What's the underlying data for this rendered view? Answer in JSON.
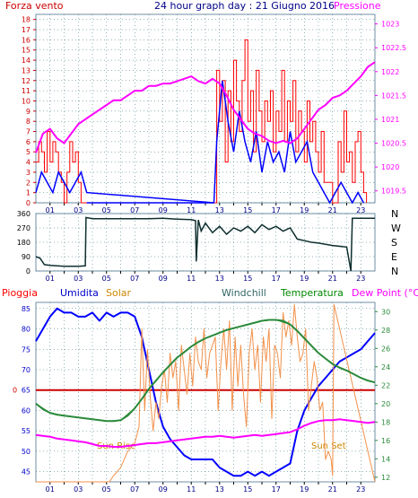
{
  "colors": {
    "frame": "#6f8fa6",
    "axis": "#000000",
    "grid": "#2b6a76",
    "wind_gust": "#ff0000",
    "wind_avg": "#0000ff",
    "pressure": "#ff00ff",
    "left_red_axis": "#cc0000",
    "direction": "#0f2f2f",
    "humidity": "#0000ff",
    "solar": "#f2914a",
    "windchill": "#2a8a3a",
    "temperature": "#2a8a3a",
    "dewpoint": "#ff00ff",
    "rain": "#cc0000",
    "axis_labels": {
      "pioggia": "#ff0000",
      "umidita": "#0000cc",
      "solar": "#cc8800",
      "windchill": "#336666",
      "temperatura": "#008800",
      "dewpoint": "#ff00ff"
    }
  },
  "header": {
    "left": "Forza vento",
    "center": "24 hour graph day : 21 Giugno 2016",
    "right": "Pressione"
  },
  "bottom_header": {
    "pioggia": "Pioggia",
    "umidita": "Umidita",
    "solar": "Solar",
    "windchill": "Windchill",
    "temperatura": "Temperatura",
    "dewpoint": "Dew Point (°C)"
  },
  "hour_ticks": [
    "01",
    "03",
    "05",
    "07",
    "09",
    "11",
    "13",
    "15",
    "17",
    "19",
    "21",
    "23"
  ],
  "annotations": {
    "sunrise": "Sun Rise",
    "sunset": "Sun Set"
  },
  "chart_data": [
    {
      "type": "line",
      "panel": "wind_pressure",
      "y_left_ticks": [
        "0",
        "1",
        "2",
        "3",
        "4",
        "5",
        "6",
        "7",
        "8",
        "9",
        "10",
        "11",
        "12",
        "13",
        "14",
        "15",
        "16",
        "17",
        "18"
      ],
      "y_right_ticks": [
        "1019.5",
        "1020",
        "1020.5",
        "1021",
        "1021.5",
        "1022",
        "1022.5",
        "1023"
      ],
      "ylim_left": [
        0,
        18.5
      ],
      "ylim_right": [
        1019.25,
        1023.2
      ],
      "xlim": [
        0,
        24
      ],
      "gust_x": [
        0.0,
        0.2,
        0.4,
        0.6,
        0.8,
        1.0,
        1.2,
        1.4,
        1.6,
        1.8,
        2.0,
        2.2,
        2.4,
        2.6,
        2.8,
        3.0,
        3.2,
        12.6,
        12.8,
        13.0,
        13.2,
        13.4,
        13.6,
        13.8,
        14.0,
        14.2,
        14.4,
        14.6,
        14.8,
        15.0,
        15.2,
        15.4,
        15.6,
        15.8,
        16.0,
        16.2,
        16.4,
        16.6,
        16.8,
        17.0,
        17.2,
        17.4,
        17.6,
        17.8,
        18.0,
        18.2,
        18.4,
        18.6,
        18.8,
        19.0,
        19.2,
        19.4,
        19.6,
        19.8,
        20.0,
        20.2,
        20.4,
        21.0,
        21.2,
        21.4,
        21.6,
        21.8,
        22.0,
        22.2,
        22.4,
        22.6,
        22.8,
        23.0,
        23.2,
        23.4
      ],
      "gust_values": [
        4,
        6,
        5,
        3,
        7,
        4,
        6,
        5,
        3,
        2,
        0,
        3,
        6,
        4,
        5,
        2,
        0,
        0,
        13,
        8,
        12,
        4,
        11,
        6,
        14,
        10,
        7,
        12,
        16,
        8,
        11,
        5,
        13,
        9,
        6,
        10,
        8,
        11,
        5,
        9,
        7,
        13,
        6,
        10,
        8,
        12,
        5,
        9,
        7,
        4,
        10,
        6,
        8,
        5,
        3,
        7,
        2,
        0,
        0,
        6,
        3,
        9,
        4,
        5,
        2,
        6,
        7,
        3,
        1,
        0
      ],
      "avg_x": [
        0.0,
        0.4,
        0.8,
        1.2,
        1.6,
        2.0,
        2.4,
        2.8,
        3.2,
        3.6,
        12.6,
        12.8,
        13.2,
        13.6,
        14.0,
        14.4,
        14.8,
        15.2,
        15.6,
        16.0,
        16.4,
        16.8,
        17.2,
        17.6,
        18.0,
        18.4,
        18.8,
        19.2,
        19.6,
        20.0,
        20.4,
        20.8,
        21.2,
        21.6,
        22.0,
        22.4,
        22.8,
        23.2
      ],
      "avg_values": [
        1,
        3,
        2,
        1,
        3,
        2,
        1,
        2,
        3,
        1,
        0,
        6,
        12,
        8,
        5,
        9,
        6,
        4,
        7,
        3,
        6,
        4,
        5,
        3,
        7,
        4,
        5,
        6,
        3,
        2,
        1,
        0,
        1,
        2,
        1,
        0,
        1,
        0
      ],
      "pressure_x": [
        0.0,
        0.5,
        1.0,
        1.5,
        2.0,
        2.5,
        3.0,
        3.5,
        4.0,
        4.5,
        5.0,
        5.5,
        6.0,
        6.5,
        7.0,
        7.5,
        8.0,
        8.5,
        9.0,
        9.5,
        10.0,
        10.5,
        11.0,
        11.5,
        12.0,
        12.5,
        13.0,
        13.5,
        14.0,
        14.5,
        15.0,
        15.5,
        16.0,
        16.5,
        17.0,
        17.5,
        18.0,
        18.5,
        19.0,
        19.5,
        20.0,
        20.5,
        21.0,
        21.5,
        22.0,
        22.5,
        23.0,
        23.5,
        24.0
      ],
      "pressure_values": [
        1020.3,
        1020.7,
        1020.8,
        1020.6,
        1020.5,
        1020.7,
        1020.9,
        1021.0,
        1021.1,
        1021.2,
        1021.3,
        1021.4,
        1021.4,
        1021.5,
        1021.6,
        1021.6,
        1021.7,
        1021.7,
        1021.75,
        1021.75,
        1021.8,
        1021.85,
        1021.9,
        1021.8,
        1021.75,
        1021.85,
        1021.75,
        1021.5,
        1021.2,
        1021.0,
        1020.8,
        1020.7,
        1020.65,
        1020.55,
        1020.5,
        1020.55,
        1020.5,
        1020.6,
        1020.8,
        1021.0,
        1021.2,
        1021.3,
        1021.45,
        1021.5,
        1021.6,
        1021.75,
        1021.9,
        1022.1,
        1022.2
      ]
    },
    {
      "type": "line",
      "panel": "wind_direction",
      "y_left_ticks": [
        "0",
        "90",
        "180",
        "270",
        "360"
      ],
      "y_right_ticks": [
        "N",
        "W",
        "S",
        "E",
        "N"
      ],
      "ylim": [
        0,
        360
      ],
      "xlim": [
        0,
        24
      ],
      "x": [
        0.0,
        0.3,
        0.6,
        1.0,
        2.0,
        3.0,
        3.5,
        3.55,
        4.0,
        5.0,
        6.0,
        7.0,
        8.0,
        9.0,
        10.0,
        11.0,
        11.3,
        11.35,
        11.5,
        11.7,
        12.0,
        12.5,
        13.0,
        13.5,
        14.0,
        14.5,
        15.0,
        15.5,
        16.0,
        16.5,
        17.0,
        17.5,
        18.0,
        18.5,
        19.0,
        19.5,
        20.0,
        21.0,
        22.0,
        22.3,
        22.4,
        22.7,
        24.0
      ],
      "values": [
        90,
        80,
        40,
        35,
        30,
        30,
        32,
        335,
        328,
        328,
        328,
        328,
        328,
        330,
        325,
        322,
        315,
        60,
        320,
        250,
        300,
        240,
        280,
        230,
        270,
        250,
        280,
        240,
        290,
        260,
        280,
        250,
        270,
        200,
        190,
        180,
        175,
        160,
        150,
        0,
        330,
        330,
        330
      ]
    },
    {
      "type": "line",
      "panel": "weather",
      "y_left_ticks": [
        "45",
        "50",
        "55",
        "60",
        "65",
        "70",
        "75",
        "80",
        "85"
      ],
      "y_right_ticks": [
        "12",
        "14",
        "16",
        "18",
        "20",
        "22",
        "24",
        "26",
        "28",
        "30"
      ],
      "ylim_left": [
        42.5,
        86.5
      ],
      "ylim_right": [
        11.5,
        31
      ],
      "xlim": [
        0,
        24
      ],
      "rain_value": 0,
      "series": [
        {
          "name": "Umidita",
          "axis": "left",
          "x": [
            0.0,
            0.5,
            1.0,
            1.5,
            2.0,
            2.5,
            3.0,
            3.5,
            4.0,
            4.5,
            5.0,
            5.5,
            6.0,
            6.5,
            7.0,
            7.5,
            8.0,
            8.5,
            9.0,
            9.5,
            10.0,
            10.5,
            11.0,
            11.5,
            12.0,
            12.5,
            13.0,
            13.5,
            14.0,
            14.5,
            15.0,
            15.5,
            16.0,
            16.5,
            17.0,
            17.5,
            18.0,
            18.5,
            19.0,
            19.5,
            20.0,
            20.5,
            21.0,
            21.5,
            22.0,
            22.5,
            23.0,
            23.5,
            24.0
          ],
          "values": [
            77,
            80,
            83,
            85,
            84,
            84,
            83,
            83,
            84,
            82,
            84,
            83,
            84,
            84,
            83,
            78,
            70,
            62,
            56,
            53,
            51,
            49,
            48,
            48,
            48,
            48,
            46,
            45,
            44,
            44,
            45,
            44,
            45,
            44,
            45,
            46,
            47,
            55,
            60,
            63,
            66,
            68,
            70,
            72,
            73,
            74,
            75,
            77,
            79
          ]
        },
        {
          "name": "Solar",
          "axis": "left",
          "x": [
            0.0,
            5.2,
            5.5,
            6.0,
            6.5,
            7.0,
            7.3,
            7.5,
            7.7,
            7.9,
            8.1,
            8.3,
            8.5,
            8.7,
            8.9,
            9.1,
            9.3,
            9.5,
            9.7,
            9.9,
            10.1,
            10.3,
            10.5,
            10.7,
            10.9,
            11.1,
            11.3,
            11.5,
            11.7,
            11.9,
            12.1,
            12.3,
            12.5,
            12.7,
            12.9,
            13.1,
            13.3,
            13.5,
            13.7,
            13.9,
            14.1,
            14.3,
            14.5,
            14.7,
            14.9,
            15.1,
            15.3,
            15.5,
            15.7,
            15.9,
            16.1,
            16.3,
            16.5,
            16.7,
            16.9,
            17.1,
            17.3,
            17.5,
            17.7,
            17.9,
            18.1,
            18.3,
            18.5,
            18.7,
            18.9,
            19.1,
            19.3,
            19.5,
            19.7,
            19.9,
            20.1,
            20.3,
            20.5,
            20.7,
            20.9,
            21.0,
            21.1,
            24.0
          ],
          "values": [
            42.5,
            42.5,
            44,
            46,
            50,
            52,
            56,
            80,
            60,
            75,
            63,
            55,
            62,
            58,
            66,
            70,
            62,
            74,
            68,
            72,
            60,
            76,
            70,
            64,
            74,
            66,
            78,
            72,
            70,
            80,
            68,
            74,
            76,
            78,
            60,
            72,
            80,
            70,
            82,
            60,
            78,
            66,
            76,
            64,
            56,
            74,
            80,
            70,
            76,
            62,
            78,
            72,
            80,
            58,
            76,
            74,
            68,
            84,
            78,
            82,
            76,
            86,
            78,
            72,
            74,
            80,
            60,
            66,
            72,
            68,
            60,
            62,
            48,
            50,
            48,
            44,
            86,
            42.5
          ]
        },
        {
          "name": "Windchill",
          "axis": "right",
          "x": [
            0.0,
            0.5,
            1.0,
            1.5,
            2.0,
            2.5,
            3.0,
            3.5,
            4.0,
            4.5,
            5.0,
            5.5,
            6.0,
            6.5,
            7.0,
            7.5,
            8.0,
            8.5,
            9.0,
            9.5,
            10.0,
            10.5,
            11.0,
            11.5,
            12.0,
            12.5,
            13.0,
            13.5,
            14.0,
            14.5,
            15.0,
            15.5,
            16.0,
            16.5,
            17.0,
            17.5,
            18.0,
            18.5,
            19.0,
            19.5,
            20.0,
            20.5,
            21.0,
            21.5,
            22.0,
            22.5,
            23.0,
            23.5,
            24.0
          ],
          "values": [
            20.0,
            19.4,
            19.0,
            18.8,
            18.7,
            18.6,
            18.5,
            18.4,
            18.3,
            18.2,
            18.1,
            18.1,
            18.2,
            18.7,
            19.5,
            20.5,
            21.6,
            22.5,
            23.4,
            24.2,
            25.0,
            25.6,
            26.2,
            26.7,
            27.1,
            27.4,
            27.7,
            28.0,
            28.2,
            28.4,
            28.6,
            28.8,
            29.0,
            29.1,
            29.1,
            29.0,
            28.6,
            27.9,
            27.1,
            26.3,
            25.5,
            24.9,
            24.3,
            23.9,
            23.6,
            23.2,
            22.8,
            22.5,
            22.3
          ]
        },
        {
          "name": "Temperatura",
          "axis": "right",
          "x": [
            0.0,
            1.0,
            2.0,
            3.0,
            4.0,
            5.0,
            6.0,
            7.0,
            8.0,
            9.0,
            10.0,
            11.0,
            12.0,
            13.0,
            14.0,
            15.0,
            16.0,
            17.0,
            18.0,
            19.0,
            20.0,
            21.0,
            22.0,
            23.0,
            24.0
          ],
          "values": [
            20.0,
            19.0,
            18.7,
            18.5,
            18.3,
            18.1,
            18.2,
            19.5,
            21.6,
            23.4,
            25.0,
            26.2,
            27.1,
            27.7,
            28.2,
            28.6,
            29.0,
            29.1,
            28.6,
            27.1,
            25.5,
            24.3,
            23.6,
            22.8,
            22.3
          ]
        },
        {
          "name": "Dew Point (°C)",
          "axis": "right",
          "x": [
            0.0,
            0.5,
            1.0,
            1.5,
            2.0,
            2.5,
            3.0,
            3.5,
            4.0,
            4.5,
            5.0,
            5.5,
            6.0,
            6.5,
            7.0,
            7.5,
            8.0,
            8.5,
            9.0,
            9.5,
            10.0,
            10.5,
            11.0,
            11.5,
            12.0,
            12.5,
            13.0,
            13.5,
            14.0,
            14.5,
            15.0,
            15.5,
            16.0,
            16.5,
            17.0,
            17.5,
            18.0,
            18.5,
            19.0,
            19.5,
            20.0,
            20.5,
            21.0,
            21.5,
            22.0,
            22.5,
            23.0,
            23.5,
            24.0
          ],
          "values": [
            16.6,
            16.5,
            16.4,
            16.2,
            16.1,
            16.0,
            15.9,
            15.8,
            15.6,
            15.4,
            15.4,
            15.3,
            15.3,
            15.4,
            15.5,
            15.6,
            15.7,
            15.7,
            15.8,
            15.9,
            16.0,
            16.1,
            16.2,
            16.3,
            16.4,
            16.4,
            16.5,
            16.4,
            16.3,
            16.4,
            16.5,
            16.6,
            16.5,
            16.6,
            16.7,
            16.8,
            16.9,
            17.2,
            17.6,
            17.9,
            18.1,
            18.2,
            18.2,
            18.3,
            18.2,
            18.1,
            18.0,
            17.9,
            18.0
          ]
        }
      ]
    }
  ]
}
